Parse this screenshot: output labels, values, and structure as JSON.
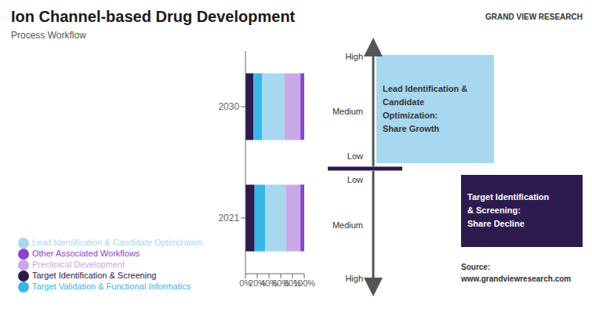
{
  "chart_data": {
    "type": "bar",
    "title": "Ion Channel-based Drug Development",
    "subtitle": "Process Workflow",
    "orientation": "horizontal",
    "stacked": true,
    "grid": false,
    "legend": "bottom",
    "categories": [
      "2030",
      "2021"
    ],
    "series": [
      {
        "name": "Target Identification & Screening",
        "color": "#2d1b4e",
        "values": [
          13.5,
          15.5
        ]
      },
      {
        "name": "Target Validation & Functional Informatics",
        "color": "#38b6e8",
        "values": [
          15.0,
          18.0
        ]
      },
      {
        "name": "Lead Identification & Candidate Optimization",
        "color": "#a8d8f0",
        "values": [
          38.0,
          35.0
        ]
      },
      {
        "name": "Preclinical Development",
        "color": "#c9a8e8",
        "values": [
          27.0,
          25.0
        ]
      },
      {
        "name": "Other Associated Workflows",
        "color": "#8b44cc",
        "values": [
          6.5,
          6.5
        ]
      }
    ],
    "xlim": [
      0,
      100
    ],
    "xticks": [
      {
        "value": 0,
        "label": "0%"
      },
      {
        "value": 20,
        "label": "20%"
      },
      {
        "value": 40,
        "label": "40%"
      },
      {
        "value": 60,
        "label": "60%"
      },
      {
        "value": 80,
        "label": "80%"
      },
      {
        "value": 100,
        "label": "100%"
      }
    ],
    "annotations": [
      "High",
      "Medium",
      "Low",
      "Low",
      "Medium",
      "High",
      "Lead Identification &\nCandidate\nOptimization:\nShare Growth",
      "Target Identification\n& Screening:\nShare Decline",
      "Source:\nwww.grandviewresearch.com",
      "GRAND VIEW RESEARCH"
    ]
  }
}
